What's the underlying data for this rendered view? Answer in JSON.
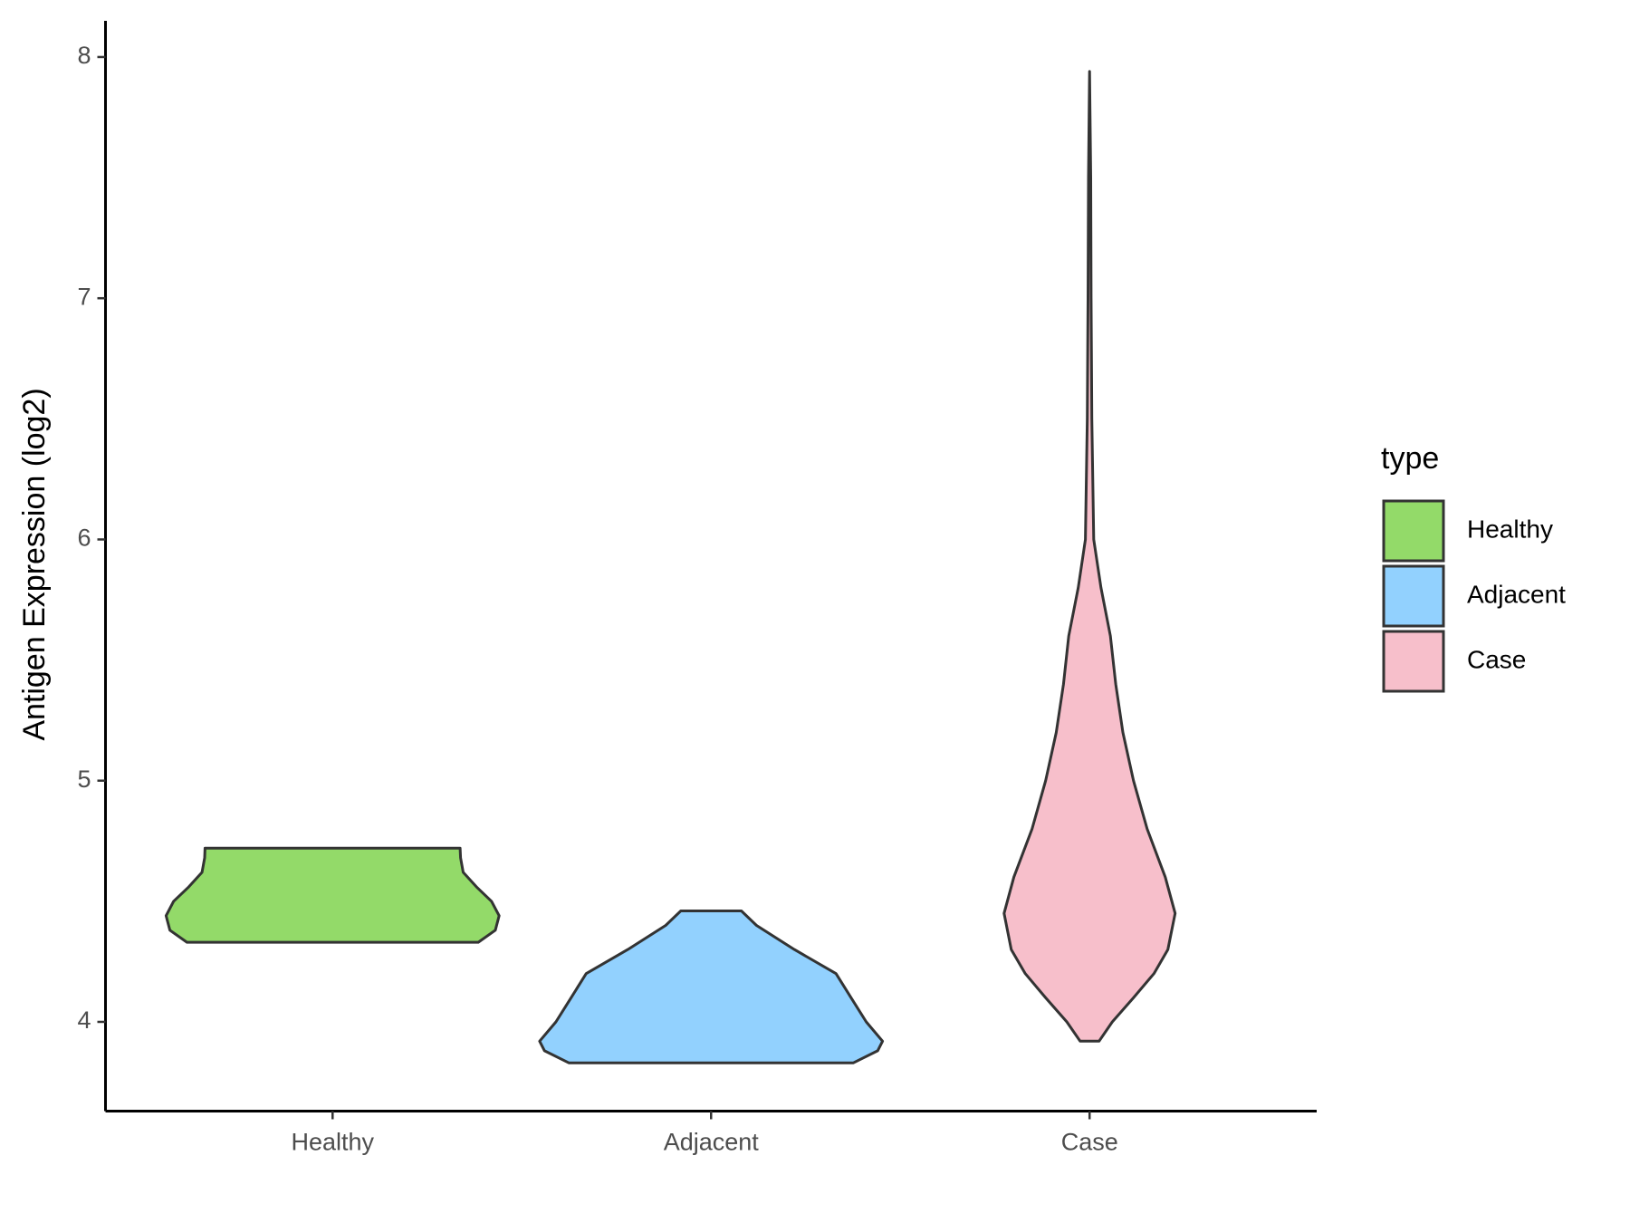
{
  "chart_data": {
    "type": "violin",
    "y_label": "Antigen Expression (log2)",
    "categories": [
      "Healthy",
      "Adjacent",
      "Case"
    ],
    "ylim": [
      3.63,
      8.15
    ],
    "yticks": [
      4,
      5,
      6,
      7,
      8
    ],
    "legend_title": "type",
    "legend": "right",
    "series": [
      {
        "name": "Healthy",
        "color": "#93da69",
        "profile": [
          [
            4.33,
            0.385
          ],
          [
            4.38,
            0.43
          ],
          [
            4.44,
            0.44
          ],
          [
            4.5,
            0.42
          ],
          [
            4.56,
            0.38
          ],
          [
            4.62,
            0.345
          ],
          [
            4.68,
            0.338
          ],
          [
            4.72,
            0.337
          ]
        ]
      },
      {
        "name": "Adjacent",
        "color": "#92d1fe",
        "profile": [
          [
            3.83,
            0.376
          ],
          [
            3.88,
            0.44
          ],
          [
            3.92,
            0.453
          ],
          [
            4.0,
            0.41
          ],
          [
            4.1,
            0.37
          ],
          [
            4.2,
            0.33
          ],
          [
            4.3,
            0.22
          ],
          [
            4.4,
            0.12
          ],
          [
            4.46,
            0.08
          ]
        ]
      },
      {
        "name": "Case",
        "color": "#f7bfcb",
        "profile": [
          [
            3.92,
            0.025
          ],
          [
            4.0,
            0.06
          ],
          [
            4.1,
            0.116
          ],
          [
            4.2,
            0.17
          ],
          [
            4.3,
            0.207
          ],
          [
            4.45,
            0.226
          ],
          [
            4.6,
            0.2
          ],
          [
            4.8,
            0.152
          ],
          [
            5.0,
            0.116
          ],
          [
            5.2,
            0.088
          ],
          [
            5.4,
            0.069
          ],
          [
            5.6,
            0.055
          ],
          [
            5.8,
            0.03
          ],
          [
            6.0,
            0.011
          ],
          [
            6.5,
            0.006
          ],
          [
            7.0,
            0.004
          ],
          [
            7.5,
            0.003
          ],
          [
            7.94,
            0.0
          ]
        ]
      }
    ]
  }
}
